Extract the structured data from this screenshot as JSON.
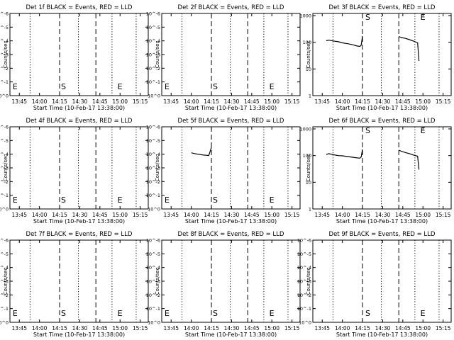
{
  "figure": {
    "background": "#ffffff",
    "ink": "#000000"
  },
  "chart_data": [
    {
      "type": "line",
      "title": "Det 1f BLACK = Events, RED = LLD",
      "xlabel": "Start Time (10-Feb-17 13:38:00)",
      "ylabel": "Counts/sec",
      "x_ticks": [
        "13:45",
        "14:00",
        "14:15",
        "14:30",
        "14:45",
        "15:00",
        "15:15"
      ],
      "xlim": [
        "13:38",
        "15:21"
      ],
      "y_ticks": [
        "10^0",
        "10^-1",
        "10^-2",
        "10^-3",
        "10^-4",
        "10^-5",
        "10^-6"
      ],
      "ylim": [
        0,
        6
      ],
      "y_scale": "log",
      "marker_labels": [
        {
          "text": "E",
          "x": "13:39"
        },
        {
          "text": "S",
          "x": "14:15"
        },
        {
          "text": "E",
          "x": "14:57"
        }
      ],
      "dashed_lines": [
        "14:15",
        "14:42"
      ],
      "dotted_lines": [
        "13:53",
        "14:29",
        "14:54",
        "15:12"
      ],
      "series": []
    },
    {
      "type": "line",
      "title": "Det 2f BLACK = Events, RED = LLD",
      "xlabel": "Start Time (10-Feb-17 13:38:00)",
      "ylabel": "Counts/sec",
      "x_ticks": [
        "13:45",
        "14:00",
        "14:15",
        "14:30",
        "14:45",
        "15:00",
        "15:15"
      ],
      "xlim": [
        "13:38",
        "15:21"
      ],
      "y_ticks": [
        "10^0",
        "10^-1",
        "10^-2",
        "10^-3",
        "10^-4",
        "10^-5",
        "10^-6"
      ],
      "ylim": [
        0,
        6
      ],
      "y_scale": "log",
      "marker_labels": [
        {
          "text": "E",
          "x": "13:39"
        },
        {
          "text": "S",
          "x": "14:15"
        },
        {
          "text": "E",
          "x": "14:57"
        }
      ],
      "dashed_lines": [
        "14:15",
        "14:42"
      ],
      "dotted_lines": [
        "13:53",
        "14:29",
        "14:54",
        "15:12"
      ],
      "series": []
    },
    {
      "type": "line",
      "title": "Det 3f BLACK = Events, RED = LLD",
      "xlabel": "Start Time (10-Feb-17 13:38:00)",
      "ylabel": "Counts/sec",
      "x_ticks": [
        "13:45",
        "14:00",
        "14:15",
        "14:30",
        "14:45",
        "15:00",
        "15:15"
      ],
      "xlim": [
        "13:38",
        "15:21"
      ],
      "y_ticks": [
        "1",
        "10",
        "100",
        "1000"
      ],
      "ylim": [
        1,
        1200
      ],
      "y_scale": "log",
      "marker_labels": [
        {
          "text": "S",
          "x": "14:16"
        },
        {
          "text": "E",
          "x": "14:57"
        }
      ],
      "dashed_lines": [
        "14:15",
        "14:42"
      ],
      "dotted_lines": [
        "13:53",
        "14:29",
        "14:54",
        "15:12"
      ],
      "series": [
        {
          "x": [
            "13:48",
            "13:50",
            "13:53",
            "13:57",
            "14:00",
            "14:04",
            "14:08",
            "14:11",
            "14:13",
            "14:14",
            "14:15"
          ],
          "y": [
            115,
            120,
            112,
            105,
            95,
            88,
            80,
            72,
            70,
            78,
            170
          ]
        },
        {
          "x": [
            "14:42",
            "14:44",
            "14:47",
            "14:50",
            "14:53",
            "14:56",
            "14:57"
          ],
          "y": [
            165,
            150,
            140,
            125,
            110,
            95,
            20
          ]
        }
      ]
    },
    {
      "type": "line",
      "title": "Det 4f BLACK = Events, RED = LLD",
      "xlabel": "Start Time (10-Feb-17 13:38:00)",
      "ylabel": "Counts/sec",
      "x_ticks": [
        "13:45",
        "14:00",
        "14:15",
        "14:30",
        "14:45",
        "15:00",
        "15:15"
      ],
      "xlim": [
        "13:38",
        "15:21"
      ],
      "y_ticks": [
        "10^0",
        "10^-1",
        "10^-2",
        "10^-3",
        "10^-4",
        "10^-5",
        "10^-6"
      ],
      "ylim": [
        0,
        6
      ],
      "y_scale": "log",
      "marker_labels": [
        {
          "text": "E",
          "x": "13:39"
        },
        {
          "text": "S",
          "x": "14:15"
        },
        {
          "text": "E",
          "x": "14:57"
        }
      ],
      "dashed_lines": [
        "14:15",
        "14:42"
      ],
      "dotted_lines": [
        "13:53",
        "14:29",
        "14:54",
        "15:12"
      ],
      "series": []
    },
    {
      "type": "line",
      "title": "Det 5f BLACK = Events, RED = LLD",
      "xlabel": "Start Time (10-Feb-17 13:38:00)",
      "ylabel": "Counts/sec",
      "x_ticks": [
        "13:45",
        "14:00",
        "14:15",
        "14:30",
        "14:45",
        "15:00",
        "15:15"
      ],
      "xlim": [
        "13:38",
        "15:21"
      ],
      "y_ticks": [
        "10^0",
        "10^-1",
        "10^-2",
        "10^-3",
        "10^-4",
        "10^-5",
        "10^-6"
      ],
      "ylim": [
        0,
        6
      ],
      "y_scale": "log",
      "marker_labels": [
        {
          "text": "E",
          "x": "13:39"
        },
        {
          "text": "S",
          "x": "14:15"
        },
        {
          "text": "E",
          "x": "14:57"
        }
      ],
      "dashed_lines": [
        "14:15",
        "14:42"
      ],
      "dotted_lines": [
        "13:53",
        "14:29",
        "14:54",
        "15:12"
      ],
      "series": [
        {
          "x": [
            "14:00",
            "14:02",
            "14:05",
            "14:08",
            "14:11",
            "14:13",
            "14:14",
            "14:15"
          ],
          "y": [
            4.1,
            4.05,
            4.0,
            3.95,
            3.92,
            3.9,
            4.2,
            4.5
          ]
        }
      ]
    },
    {
      "type": "line",
      "title": "Det 6f BLACK = Events, RED = LLD",
      "xlabel": "Start Time (10-Feb-17 13:38:00)",
      "ylabel": "Counts/sec",
      "x_ticks": [
        "13:45",
        "14:00",
        "14:15",
        "14:30",
        "14:45",
        "15:00",
        "15:15"
      ],
      "xlim": [
        "13:38",
        "15:21"
      ],
      "y_ticks": [
        "1",
        "10",
        "100",
        "1000"
      ],
      "ylim": [
        1,
        1200
      ],
      "y_scale": "log",
      "marker_labels": [
        {
          "text": "S",
          "x": "14:16"
        },
        {
          "text": "E",
          "x": "14:57"
        }
      ],
      "dashed_lines": [
        "14:15",
        "14:42"
      ],
      "dotted_lines": [
        "13:53",
        "14:29",
        "14:54",
        "15:12"
      ],
      "series": [
        {
          "x": [
            "13:48",
            "13:50",
            "13:53",
            "13:57",
            "14:00",
            "14:04",
            "14:08",
            "14:11",
            "14:13",
            "14:14",
            "14:15"
          ],
          "y": [
            110,
            118,
            108,
            100,
            98,
            92,
            86,
            82,
            80,
            90,
            170
          ]
        },
        {
          "x": [
            "14:42",
            "14:44",
            "14:47",
            "14:50",
            "14:53",
            "14:56",
            "14:57"
          ],
          "y": [
            160,
            145,
            130,
            118,
            105,
            95,
            30
          ]
        }
      ]
    },
    {
      "type": "line",
      "title": "Det 7f BLACK = Events, RED = LLD",
      "xlabel": "Start Time (10-Feb-17 13:38:00)",
      "ylabel": "Counts/sec",
      "x_ticks": [
        "13:45",
        "14:00",
        "14:15",
        "14:30",
        "14:45",
        "15:00",
        "15:15"
      ],
      "xlim": [
        "13:38",
        "15:21"
      ],
      "y_ticks": [
        "10^0",
        "10^-1",
        "10^-2",
        "10^-3",
        "10^-4",
        "10^-5",
        "10^-6"
      ],
      "ylim": [
        0,
        6
      ],
      "y_scale": "log",
      "marker_labels": [
        {
          "text": "E",
          "x": "13:39"
        },
        {
          "text": "S",
          "x": "14:15"
        },
        {
          "text": "E",
          "x": "14:57"
        }
      ],
      "dashed_lines": [
        "14:15",
        "14:42"
      ],
      "dotted_lines": [
        "13:53",
        "14:29",
        "14:54",
        "15:12"
      ],
      "series": []
    },
    {
      "type": "line",
      "title": "Det 8f BLACK = Events, RED = LLD",
      "xlabel": "Start Time (10-Feb-17 13:38:00)",
      "ylabel": "Counts/sec",
      "x_ticks": [
        "13:45",
        "14:00",
        "14:15",
        "14:30",
        "14:45",
        "15:00",
        "15:15"
      ],
      "xlim": [
        "13:38",
        "15:21"
      ],
      "y_ticks": [
        "10^0",
        "10^-1",
        "10^-2",
        "10^-3",
        "10^-4",
        "10^-5",
        "10^-6"
      ],
      "ylim": [
        0,
        6
      ],
      "y_scale": "log",
      "marker_labels": [
        {
          "text": "E",
          "x": "13:39"
        },
        {
          "text": "S",
          "x": "14:15"
        },
        {
          "text": "E",
          "x": "14:57"
        }
      ],
      "dashed_lines": [
        "14:15",
        "14:42"
      ],
      "dotted_lines": [
        "13:53",
        "14:29",
        "14:54",
        "15:12"
      ],
      "series": []
    },
    {
      "type": "line",
      "title": "Det 9f BLACK = Events, RED = LLD",
      "xlabel": "Start Time (10-Feb-17 13:38:00)",
      "ylabel": "Counts/sec",
      "x_ticks": [
        "13:45",
        "14:00",
        "14:15",
        "14:30",
        "14:45",
        "15:00",
        "15:15"
      ],
      "xlim": [
        "13:38",
        "15:21"
      ],
      "y_ticks": [
        "10^0",
        "10^-1",
        "10^-2",
        "10^-3",
        "10^-4",
        "10^-5",
        "10^-6"
      ],
      "ylim": [
        0,
        6
      ],
      "y_scale": "log",
      "marker_labels": [
        {
          "text": "S",
          "x": "14:16"
        },
        {
          "text": "E",
          "x": "14:57"
        }
      ],
      "dashed_lines": [
        "14:15",
        "14:42"
      ],
      "dotted_lines": [
        "13:53",
        "14:29",
        "14:54",
        "15:12"
      ],
      "series": []
    }
  ]
}
